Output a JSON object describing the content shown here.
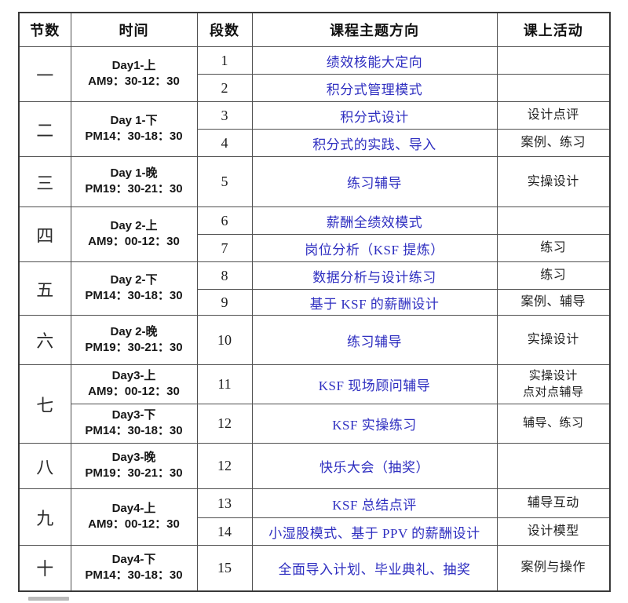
{
  "table": {
    "headers": [
      "节数",
      "时间",
      "段数",
      "课程主题方向",
      "课上活动"
    ],
    "colors": {
      "topic_text": "#2e2ec0",
      "body_text": "#1f1f1f",
      "border": "#4f4f4f"
    },
    "groups": [
      {
        "section": "一",
        "times": [
          {
            "day": "Day1-上",
            "range": "AM9：30-12：30",
            "span": 2
          }
        ],
        "rows": [
          {
            "segment": "1",
            "topic": "绩效核能大定向",
            "activity": ""
          },
          {
            "segment": "2",
            "topic": "积分式管理模式",
            "activity": ""
          }
        ]
      },
      {
        "section": "二",
        "times": [
          {
            "day": "Day 1-下",
            "range": "PM14：30-18：30",
            "span": 2
          }
        ],
        "rows": [
          {
            "segment": "3",
            "topic": "积分式设计",
            "activity": "设计点评"
          },
          {
            "segment": "4",
            "topic": "积分式的实践、导入",
            "activity": "案例、练习"
          }
        ]
      },
      {
        "section": "三",
        "times": [
          {
            "day": "Day 1-晚",
            "range": "PM19：30-21：30",
            "span": 1
          }
        ],
        "rows": [
          {
            "segment": "5",
            "topic": "练习辅导",
            "activity": "实操设计"
          }
        ]
      },
      {
        "section": "四",
        "times": [
          {
            "day": "Day 2-上",
            "range": "AM9：00-12：30",
            "span": 2
          }
        ],
        "rows": [
          {
            "segment": "6",
            "topic": "薪酬全绩效模式",
            "activity": ""
          },
          {
            "segment": "7",
            "topic": "岗位分析（KSF 提炼）",
            "activity": "练习"
          }
        ]
      },
      {
        "section": "五",
        "times": [
          {
            "day": "Day 2-下",
            "range": "PM14：30-18：30",
            "span": 2
          }
        ],
        "rows": [
          {
            "segment": "8",
            "topic": "数据分析与设计练习",
            "activity": "练习"
          },
          {
            "segment": "9",
            "topic": "基于 KSF 的薪酬设计",
            "activity": "案例、辅导"
          }
        ]
      },
      {
        "section": "六",
        "times": [
          {
            "day": "Day 2-晚",
            "range": "PM19：30-21：30",
            "span": 1
          }
        ],
        "rows": [
          {
            "segment": "10",
            "topic": "练习辅导",
            "activity": "实操设计"
          }
        ]
      },
      {
        "section": "七",
        "times": [
          {
            "day": "Day3-上",
            "range": "AM9：00-12：30",
            "span": 1
          },
          {
            "day": "Day3-下",
            "range": "PM14：30-18：30",
            "span": 1
          }
        ],
        "rows": [
          {
            "segment": "11",
            "topic": "KSF 现场顾问辅导",
            "activity": "实操设计\n点对点辅导"
          },
          {
            "segment": "12",
            "topic": "KSF 实操练习",
            "activity": "辅导、练习"
          }
        ]
      },
      {
        "section": "八",
        "times": [
          {
            "day": "Day3-晚",
            "range": "PM19：30-21：30",
            "span": 1
          }
        ],
        "rows": [
          {
            "segment": "12",
            "topic": "快乐大会（抽奖）",
            "activity": ""
          }
        ]
      },
      {
        "section": "九",
        "times": [
          {
            "day": "Day4-上",
            "range": "AM9：00-12：30",
            "span": 2
          }
        ],
        "rows": [
          {
            "segment": "13",
            "topic": "KSF 总结点评",
            "activity": "辅导互动"
          },
          {
            "segment": "14",
            "topic": "小湿股模式、基于 PPV 的薪酬设计",
            "activity": "设计模型"
          }
        ]
      },
      {
        "section": "十",
        "times": [
          {
            "day": "Day4-下",
            "range": "PM14：30-18：30",
            "span": 1
          }
        ],
        "rows": [
          {
            "segment": "15",
            "topic": "全面导入计划、毕业典礼、抽奖",
            "activity": "案例与操作"
          }
        ]
      }
    ]
  }
}
